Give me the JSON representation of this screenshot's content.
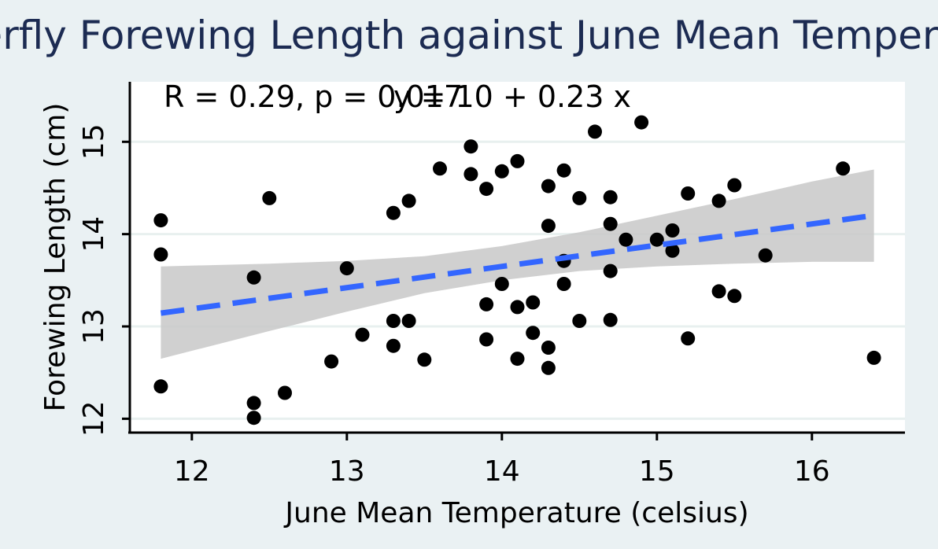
{
  "chart_data": {
    "type": "scatter",
    "title": "Butterfly Forewing Length against June Mean Temperature",
    "xlabel": "June Mean Temperature (celsius)",
    "ylabel": "Forewing Length (cm)",
    "xlim": [
      11.6,
      16.6
    ],
    "ylim": [
      11.85,
      15.65
    ],
    "x_ticks": [
      12,
      13,
      14,
      15,
      16
    ],
    "y_ticks": [
      12,
      13,
      14,
      15
    ],
    "annotations": {
      "correlation": "R = 0.29, p = 0.017",
      "equation": "y = 10 + 0.23 x"
    },
    "regression": {
      "intercept": 10.43,
      "slope": 0.23,
      "x_range": [
        11.8,
        16.4
      ],
      "ci_band": [
        {
          "x": 11.8,
          "lower": 12.65,
          "upper": 13.65
        },
        {
          "x": 12.5,
          "lower": 12.95,
          "upper": 13.68
        },
        {
          "x": 13.0,
          "lower": 13.16,
          "upper": 13.71
        },
        {
          "x": 13.5,
          "lower": 13.36,
          "upper": 13.76
        },
        {
          "x": 14.0,
          "lower": 13.5,
          "upper": 13.87
        },
        {
          "x": 14.5,
          "lower": 13.6,
          "upper": 14.02
        },
        {
          "x": 15.0,
          "lower": 13.65,
          "upper": 14.2
        },
        {
          "x": 15.5,
          "lower": 13.68,
          "upper": 14.38
        },
        {
          "x": 16.0,
          "lower": 13.7,
          "upper": 14.57
        },
        {
          "x": 16.4,
          "lower": 13.7,
          "upper": 14.7
        }
      ],
      "line_color": "#3366ff",
      "band_color": "#c8c8c8"
    },
    "points": [
      {
        "x": 11.8,
        "y": 14.15
      },
      {
        "x": 11.8,
        "y": 13.78
      },
      {
        "x": 11.8,
        "y": 12.35
      },
      {
        "x": 12.4,
        "y": 13.53
      },
      {
        "x": 12.4,
        "y": 12.17
      },
      {
        "x": 12.4,
        "y": 12.01
      },
      {
        "x": 12.5,
        "y": 14.39
      },
      {
        "x": 12.6,
        "y": 12.28
      },
      {
        "x": 12.9,
        "y": 12.62
      },
      {
        "x": 13.0,
        "y": 13.63
      },
      {
        "x": 13.1,
        "y": 12.91
      },
      {
        "x": 13.3,
        "y": 14.23
      },
      {
        "x": 13.3,
        "y": 13.06
      },
      {
        "x": 13.3,
        "y": 12.79
      },
      {
        "x": 13.4,
        "y": 14.36
      },
      {
        "x": 13.4,
        "y": 13.06
      },
      {
        "x": 13.5,
        "y": 12.64
      },
      {
        "x": 13.6,
        "y": 14.71
      },
      {
        "x": 13.8,
        "y": 14.95
      },
      {
        "x": 13.8,
        "y": 14.65
      },
      {
        "x": 13.9,
        "y": 14.49
      },
      {
        "x": 13.9,
        "y": 13.24
      },
      {
        "x": 13.9,
        "y": 12.86
      },
      {
        "x": 14.0,
        "y": 14.68
      },
      {
        "x": 14.0,
        "y": 13.46
      },
      {
        "x": 14.1,
        "y": 14.79
      },
      {
        "x": 14.1,
        "y": 13.21
      },
      {
        "x": 14.1,
        "y": 12.65
      },
      {
        "x": 14.2,
        "y": 13.26
      },
      {
        "x": 14.2,
        "y": 12.93
      },
      {
        "x": 14.3,
        "y": 14.52
      },
      {
        "x": 14.3,
        "y": 14.09
      },
      {
        "x": 14.3,
        "y": 12.77
      },
      {
        "x": 14.3,
        "y": 12.55
      },
      {
        "x": 14.4,
        "y": 14.69
      },
      {
        "x": 14.4,
        "y": 13.71
      },
      {
        "x": 14.4,
        "y": 13.46
      },
      {
        "x": 14.5,
        "y": 14.39
      },
      {
        "x": 14.5,
        "y": 13.06
      },
      {
        "x": 14.6,
        "y": 15.11
      },
      {
        "x": 14.7,
        "y": 14.4
      },
      {
        "x": 14.7,
        "y": 14.11
      },
      {
        "x": 14.7,
        "y": 13.6
      },
      {
        "x": 14.7,
        "y": 13.07
      },
      {
        "x": 14.8,
        "y": 13.94
      },
      {
        "x": 14.9,
        "y": 15.21
      },
      {
        "x": 15.0,
        "y": 13.94
      },
      {
        "x": 15.1,
        "y": 14.04
      },
      {
        "x": 15.1,
        "y": 13.82
      },
      {
        "x": 15.2,
        "y": 14.44
      },
      {
        "x": 15.2,
        "y": 12.87
      },
      {
        "x": 15.4,
        "y": 14.36
      },
      {
        "x": 15.4,
        "y": 13.38
      },
      {
        "x": 15.5,
        "y": 14.53
      },
      {
        "x": 15.5,
        "y": 13.33
      },
      {
        "x": 15.7,
        "y": 13.77
      },
      {
        "x": 16.2,
        "y": 14.71
      },
      {
        "x": 16.4,
        "y": 12.66
      }
    ],
    "grid": "horizontal",
    "colors": {
      "background": "#eaf1f3",
      "panel": "#ffffff",
      "gridline": "#e8f0ef",
      "title": "#1c2b52",
      "point": "#000000"
    }
  }
}
